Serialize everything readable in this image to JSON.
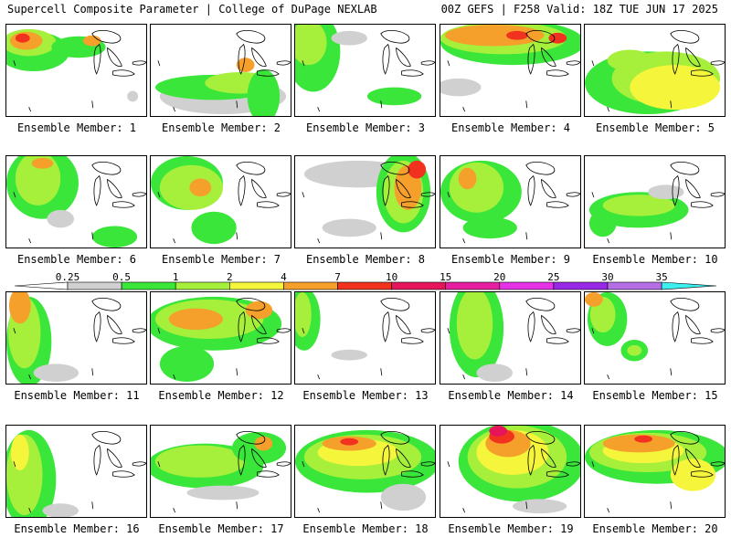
{
  "header": {
    "title": "Supercell Composite Parameter | College of DuPage NEXLAB",
    "run_info": "00Z GEFS | F258 Valid: 18Z TUE JUN 17 2025"
  },
  "colorbar": {
    "ticks": [
      "0.25",
      "0.5",
      "1",
      "2",
      "4",
      "7",
      "10",
      "15",
      "20",
      "25",
      "30",
      "35"
    ],
    "colors": [
      "#d0d0d0",
      "#39e639",
      "#a6f03c",
      "#f5f53b",
      "#f5a02b",
      "#f0321e",
      "#e6145a",
      "#e61ea0",
      "#e632e6",
      "#9628e6",
      "#b46ee6",
      "#3cf0f0"
    ]
  },
  "members": [
    {
      "label": "Ensemble Member: 1"
    },
    {
      "label": "Ensemble Member: 2"
    },
    {
      "label": "Ensemble Member: 3"
    },
    {
      "label": "Ensemble Member: 4"
    },
    {
      "label": "Ensemble Member: 5"
    },
    {
      "label": "Ensemble Member: 6"
    },
    {
      "label": "Ensemble Member: 7"
    },
    {
      "label": "Ensemble Member: 8"
    },
    {
      "label": "Ensemble Member: 9"
    },
    {
      "label": "Ensemble Member: 10"
    },
    {
      "label": "Ensemble Member: 11"
    },
    {
      "label": "Ensemble Member: 12"
    },
    {
      "label": "Ensemble Member: 13"
    },
    {
      "label": "Ensemble Member: 14"
    },
    {
      "label": "Ensemble Member: 15"
    },
    {
      "label": "Ensemble Member: 16"
    },
    {
      "label": "Ensemble Member: 17"
    },
    {
      "label": "Ensemble Member: 18"
    },
    {
      "label": "Ensemble Member: 19"
    },
    {
      "label": "Ensemble Member: 20"
    }
  ]
}
